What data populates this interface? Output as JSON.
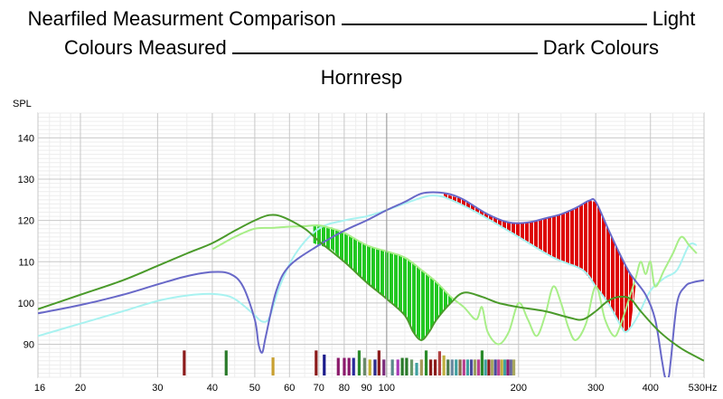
{
  "title_lines": {
    "line1_left": "Nearfiled Measurment Comparison",
    "line1_right": "Light",
    "line2_left": "Colours Measured",
    "line2_right": "Dark Colours",
    "line3": "Hornresp"
  },
  "chart_data": {
    "type": "line",
    "ylabel": "SPL",
    "xunit": "Hz",
    "xscale": "log",
    "xlim": [
      16,
      530
    ],
    "ylim": [
      82,
      146
    ],
    "yticks": [
      90,
      100,
      110,
      120,
      130,
      140
    ],
    "xticks": [
      {
        "v": 16,
        "label": "16"
      },
      {
        "v": 20,
        "label": "20"
      },
      {
        "v": 30,
        "label": "30"
      },
      {
        "v": 40,
        "label": "40"
      },
      {
        "v": 50,
        "label": "50"
      },
      {
        "v": 60,
        "label": "60"
      },
      {
        "v": 70,
        "label": "70"
      },
      {
        "v": 80,
        "label": "80"
      },
      {
        "v": 90,
        "label": "90"
      },
      {
        "v": 100,
        "label": "100"
      },
      {
        "v": 200,
        "label": "200"
      },
      {
        "v": 300,
        "label": "300"
      },
      {
        "v": 400,
        "label": "400"
      },
      {
        "v": 530,
        "label": "530"
      }
    ],
    "grid": true,
    "cursor_x": 100,
    "colors": {
      "dark_green": "#4a9a2a",
      "light_green": "#a8ee88",
      "dark_blue": "#6868c8",
      "light_cyan": "#a8f2f0",
      "fill_green": "#22c822",
      "fill_red": "#dd0000"
    },
    "series": [
      {
        "color": "#a8f2f0",
        "width": 2,
        "points": [
          [
            16,
            92
          ],
          [
            20,
            95
          ],
          [
            25,
            98
          ],
          [
            30,
            100.5
          ],
          [
            35,
            101.8
          ],
          [
            40,
            102.2
          ],
          [
            44,
            101.5
          ],
          [
            47,
            99.5
          ],
          [
            50,
            97
          ],
          [
            52,
            95.5
          ],
          [
            54,
            96.5
          ],
          [
            57,
            104
          ],
          [
            62,
            112
          ],
          [
            70,
            118
          ],
          [
            80,
            120
          ],
          [
            90,
            121
          ],
          [
            100,
            122.5
          ],
          [
            120,
            125.5
          ],
          [
            130,
            126
          ],
          [
            140,
            125
          ],
          [
            160,
            122
          ],
          [
            200,
            116
          ],
          [
            240,
            111
          ],
          [
            280,
            108
          ],
          [
            300,
            104
          ],
          [
            320,
            100
          ],
          [
            340,
            95
          ],
          [
            350,
            93
          ],
          [
            360,
            94
          ],
          [
            375,
            97
          ],
          [
            400,
            103
          ],
          [
            430,
            106
          ],
          [
            460,
            108
          ],
          [
            490,
            114
          ],
          [
            510,
            114
          ]
        ]
      },
      {
        "color": "#a8ee88",
        "width": 2,
        "points": [
          [
            40,
            113
          ],
          [
            45,
            116
          ],
          [
            50,
            118
          ],
          [
            55,
            118.2
          ],
          [
            60,
            118.5
          ],
          [
            65,
            118.6
          ],
          [
            70,
            118.8
          ],
          [
            74,
            118.2
          ],
          [
            80,
            117
          ],
          [
            90,
            114
          ],
          [
            100,
            112.5
          ],
          [
            110,
            111
          ],
          [
            120,
            108
          ],
          [
            130,
            105
          ],
          [
            140,
            101.5
          ],
          [
            150,
            99
          ],
          [
            160,
            96
          ],
          [
            165,
            99
          ],
          [
            170,
            93
          ],
          [
            180,
            90
          ],
          [
            190,
            93
          ],
          [
            200,
            100
          ],
          [
            210,
            96
          ],
          [
            220,
            92
          ],
          [
            230,
            97
          ],
          [
            240,
            104
          ],
          [
            250,
            100
          ],
          [
            260,
            94
          ],
          [
            270,
            91
          ],
          [
            285,
            95
          ],
          [
            300,
            104
          ],
          [
            315,
            96
          ],
          [
            330,
            92
          ],
          [
            340,
            94
          ],
          [
            355,
            100
          ],
          [
            370,
            106
          ],
          [
            380,
            110
          ],
          [
            390,
            107
          ],
          [
            400,
            110
          ],
          [
            410,
            104
          ],
          [
            430,
            108
          ],
          [
            450,
            112
          ],
          [
            470,
            116
          ],
          [
            490,
            114
          ],
          [
            510,
            112
          ]
        ]
      },
      {
        "color": "#6868c8",
        "width": 2,
        "points": [
          [
            16,
            97.5
          ],
          [
            20,
            99.5
          ],
          [
            25,
            102
          ],
          [
            30,
            104.5
          ],
          [
            35,
            106.5
          ],
          [
            40,
            107.5
          ],
          [
            44,
            107
          ],
          [
            47,
            104
          ],
          [
            50,
            96
          ],
          [
            51,
            90
          ],
          [
            52,
            88
          ],
          [
            53,
            92
          ],
          [
            56,
            103
          ],
          [
            60,
            109
          ],
          [
            70,
            114
          ],
          [
            80,
            117.5
          ],
          [
            90,
            120
          ],
          [
            100,
            122.5
          ],
          [
            110,
            124.5
          ],
          [
            120,
            126.5
          ],
          [
            130,
            126.8
          ],
          [
            140,
            126.3
          ],
          [
            150,
            125
          ],
          [
            170,
            121.5
          ],
          [
            190,
            119.5
          ],
          [
            210,
            119.5
          ],
          [
            230,
            120.5
          ],
          [
            250,
            121.5
          ],
          [
            270,
            123
          ],
          [
            290,
            124.8
          ],
          [
            300,
            124.5
          ],
          [
            320,
            118
          ],
          [
            340,
            112
          ],
          [
            360,
            107
          ],
          [
            390,
            102
          ],
          [
            410,
            96
          ],
          [
            425,
            86
          ],
          [
            432,
            82
          ],
          [
            440,
            82
          ],
          [
            445,
            86
          ],
          [
            460,
            100
          ],
          [
            480,
            104
          ],
          [
            500,
            105
          ],
          [
            530,
            105.5
          ]
        ]
      },
      {
        "color": "#4a9a2a",
        "width": 2,
        "points": [
          [
            16,
            98.5
          ],
          [
            20,
            102
          ],
          [
            25,
            105.5
          ],
          [
            30,
            109
          ],
          [
            35,
            112
          ],
          [
            40,
            114.5
          ],
          [
            45,
            117.5
          ],
          [
            50,
            120
          ],
          [
            54,
            121.3
          ],
          [
            58,
            120.8
          ],
          [
            65,
            118
          ],
          [
            70,
            115
          ],
          [
            80,
            110
          ],
          [
            90,
            105
          ],
          [
            100,
            101
          ],
          [
            110,
            97
          ],
          [
            115,
            93
          ],
          [
            120,
            91
          ],
          [
            125,
            93
          ],
          [
            130,
            96
          ],
          [
            140,
            100
          ],
          [
            150,
            102.5
          ],
          [
            165,
            101.5
          ],
          [
            180,
            100
          ],
          [
            200,
            99
          ],
          [
            230,
            98
          ],
          [
            260,
            96.5
          ],
          [
            280,
            96
          ],
          [
            300,
            98
          ],
          [
            320,
            100.5
          ],
          [
            340,
            101.5
          ],
          [
            360,
            101
          ],
          [
            380,
            98
          ],
          [
            420,
            93
          ],
          [
            470,
            89
          ],
          [
            530,
            86
          ]
        ]
      }
    ],
    "fills": [
      {
        "color": "#22c822",
        "hatch": "#ffffff",
        "upper": [
          [
            68,
            118.6
          ],
          [
            75,
            118.3
          ],
          [
            80,
            117
          ],
          [
            90,
            114
          ],
          [
            100,
            112.5
          ],
          [
            110,
            111
          ],
          [
            120,
            108
          ],
          [
            130,
            105
          ],
          [
            140,
            101.5
          ],
          [
            143,
            101
          ]
        ],
        "lower": [
          [
            68,
            114.5
          ],
          [
            75,
            113
          ],
          [
            80,
            110
          ],
          [
            90,
            105
          ],
          [
            100,
            101
          ],
          [
            110,
            97
          ],
          [
            115,
            93
          ],
          [
            120,
            91
          ],
          [
            125,
            93
          ],
          [
            130,
            96
          ],
          [
            140,
            100
          ],
          [
            143,
            101
          ]
        ]
      },
      {
        "color": "#dd0000",
        "hatch": "#ffffff",
        "upper": [
          [
            135,
            126.5
          ],
          [
            150,
            125
          ],
          [
            170,
            121.5
          ],
          [
            190,
            119.5
          ],
          [
            210,
            119.5
          ],
          [
            230,
            120.5
          ],
          [
            250,
            121.5
          ],
          [
            270,
            123
          ],
          [
            290,
            124.8
          ],
          [
            300,
            124.5
          ],
          [
            320,
            118
          ],
          [
            340,
            112
          ],
          [
            360,
            107
          ],
          [
            370,
            104
          ]
        ],
        "lower": [
          [
            135,
            126
          ],
          [
            140,
            125
          ],
          [
            160,
            122
          ],
          [
            200,
            116
          ],
          [
            240,
            111
          ],
          [
            280,
            108
          ],
          [
            300,
            104
          ],
          [
            320,
            100
          ],
          [
            340,
            95
          ],
          [
            350,
            93
          ],
          [
            360,
            94
          ],
          [
            370,
            104
          ]
        ]
      }
    ],
    "resonance_bars": [
      {
        "f": 34.5,
        "h": 88.5,
        "c": "#8b1a1a"
      },
      {
        "f": 43,
        "h": 88.5,
        "c": "#2a7a2a"
      },
      {
        "f": 55,
        "h": 86.8,
        "c": "#c8a030"
      },
      {
        "f": 69,
        "h": 88.5,
        "c": "#8b1a1a"
      },
      {
        "f": 72,
        "h": 87.5,
        "c": "#1a1a8b"
      },
      {
        "f": 77.5,
        "h": 86.7,
        "c": "#8b1a6b"
      },
      {
        "f": 80,
        "h": 86.7,
        "c": "#8b1a6b"
      },
      {
        "f": 82,
        "h": 86.7,
        "c": "#8b1a6b"
      },
      {
        "f": 84,
        "h": 86.7,
        "c": "#2a2a9b"
      },
      {
        "f": 86.5,
        "h": 88.5,
        "c": "#2a8a2a"
      },
      {
        "f": 89,
        "h": 86.7,
        "c": "#6a8a6a"
      },
      {
        "f": 91.5,
        "h": 86.3,
        "c": "#c0b030"
      },
      {
        "f": 94,
        "h": 86.3,
        "c": "#2a2a8b"
      },
      {
        "f": 96,
        "h": 88.5,
        "c": "#8b1a1a"
      },
      {
        "f": 98.5,
        "h": 86.3,
        "c": "#7a2a7a"
      },
      {
        "f": 103,
        "h": 86.3,
        "c": "#5a8a8a"
      },
      {
        "f": 106,
        "h": 86.3,
        "c": "#a83ab8"
      },
      {
        "f": 108.5,
        "h": 86.7,
        "c": "#2a7a2a"
      },
      {
        "f": 111,
        "h": 86.7,
        "c": "#2a7a2a"
      },
      {
        "f": 114,
        "h": 86.3,
        "c": "#6a9a6a"
      },
      {
        "f": 117,
        "h": 85.5,
        "c": "#40a0a0"
      },
      {
        "f": 120,
        "h": 86.3,
        "c": "#a89a5a"
      },
      {
        "f": 123,
        "h": 88.5,
        "c": "#2a8a2a"
      },
      {
        "f": 126,
        "h": 86.3,
        "c": "#8b1a1a"
      },
      {
        "f": 129,
        "h": 86.3,
        "c": "#8b1a1a"
      },
      {
        "f": 132,
        "h": 88.3,
        "c": "#b04040"
      },
      {
        "f": 135,
        "h": 87.3,
        "c": "#c0b040"
      },
      {
        "f": 138,
        "h": 86.3,
        "c": "#4a7a4a"
      },
      {
        "f": 141,
        "h": 86.3,
        "c": "#6a8aa0"
      },
      {
        "f": 144,
        "h": 86.3,
        "c": "#40a0a0"
      },
      {
        "f": 147,
        "h": 86.3,
        "c": "#8a6a4a"
      },
      {
        "f": 150,
        "h": 86.3,
        "c": "#b84090"
      },
      {
        "f": 153,
        "h": 86.3,
        "c": "#40a0a0"
      },
      {
        "f": 156,
        "h": 86.3,
        "c": "#4a4a9a"
      },
      {
        "f": 159,
        "h": 86.3,
        "c": "#9aa060"
      },
      {
        "f": 162,
        "h": 86.3,
        "c": "#b84090"
      },
      {
        "f": 165,
        "h": 88.5,
        "c": "#2a8a2a"
      },
      {
        "f": 168,
        "h": 86.3,
        "c": "#40a0a0"
      },
      {
        "f": 171,
        "h": 86.3,
        "c": "#8b1a1a"
      },
      {
        "f": 174,
        "h": 86.3,
        "c": "#a8a860"
      },
      {
        "f": 177,
        "h": 86.3,
        "c": "#4a4a9a"
      },
      {
        "f": 180,
        "h": 86.3,
        "c": "#b84090"
      },
      {
        "f": 183,
        "h": 86.3,
        "c": "#c0b040"
      },
      {
        "f": 186,
        "h": 86.3,
        "c": "#40a0a0"
      },
      {
        "f": 189,
        "h": 86.3,
        "c": "#8b1a6b"
      },
      {
        "f": 192,
        "h": 86.3,
        "c": "#6a6a9a"
      },
      {
        "f": 195,
        "h": 86.3,
        "c": "#a8a860"
      }
    ]
  }
}
